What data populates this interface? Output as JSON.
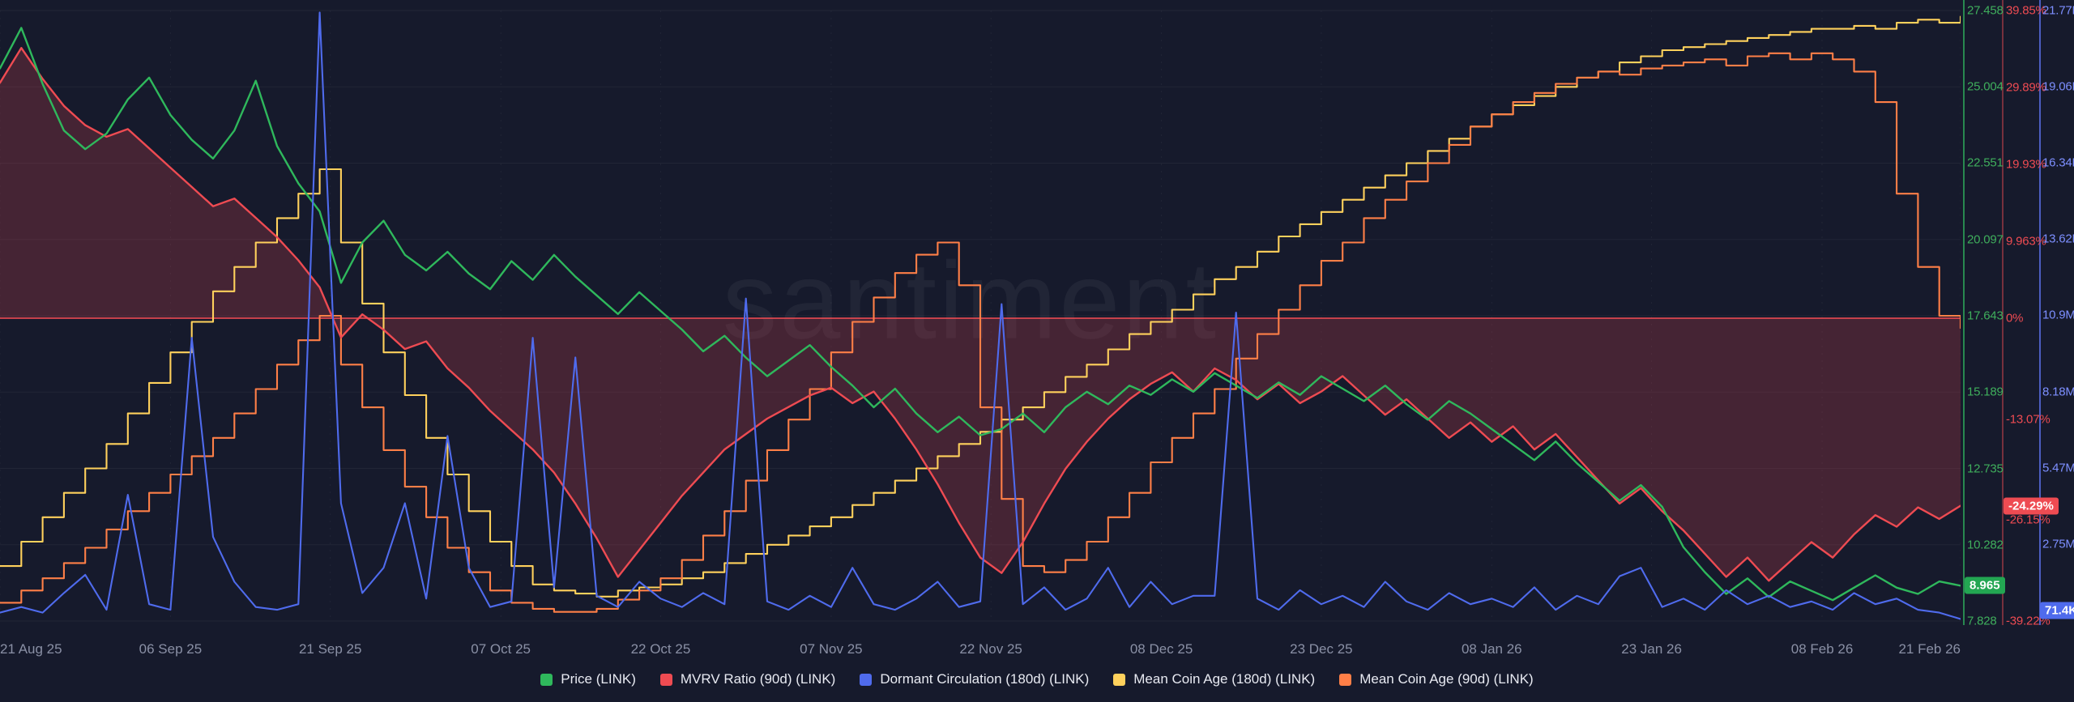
{
  "watermark": "santiment",
  "colors": {
    "background": "#161a2c",
    "grid": "rgba(255,255,255,0.05)",
    "price": "#2fb85c",
    "mvrv": "#ee4b52",
    "dormant": "#4f6bed",
    "coinage180": "#ffd15c",
    "coinage90": "#ff7f47",
    "mvrv_fill": "rgba(238,75,82,0.22)",
    "zero_line": "rgba(238,75,82,0.9)"
  },
  "x_axis": {
    "total_days": 184,
    "labels": [
      {
        "label": "21 Aug 25",
        "day": 0
      },
      {
        "label": "06 Sep 25",
        "day": 16
      },
      {
        "label": "21 Sep 25",
        "day": 31
      },
      {
        "label": "07 Oct 25",
        "day": 47
      },
      {
        "label": "22 Oct 25",
        "day": 62
      },
      {
        "label": "07 Nov 25",
        "day": 78
      },
      {
        "label": "22 Nov 25",
        "day": 93
      },
      {
        "label": "08 Dec 25",
        "day": 109
      },
      {
        "label": "23 Dec 25",
        "day": 124
      },
      {
        "label": "08 Jan 26",
        "day": 140
      },
      {
        "label": "23 Jan 26",
        "day": 155
      },
      {
        "label": "08 Feb 26",
        "day": 171
      },
      {
        "label": "21 Feb 26",
        "day": 184
      }
    ]
  },
  "axes": {
    "price": {
      "ticks": [
        {
          "label": "27.458",
          "value": 27.458
        },
        {
          "label": "25.004",
          "value": 25.004
        },
        {
          "label": "22.551",
          "value": 22.551
        },
        {
          "label": "20.097",
          "value": 20.097
        },
        {
          "label": "17.643",
          "value": 17.643
        },
        {
          "label": "15.189",
          "value": 15.189
        },
        {
          "label": "12.735",
          "value": 12.735
        },
        {
          "label": "10.282",
          "value": 10.282
        },
        {
          "label": "7.828",
          "value": 7.828
        }
      ],
      "current": {
        "label": "8.965",
        "value": 8.965
      }
    },
    "mvrv": {
      "ticks": [
        {
          "label": "39.85%",
          "value": 39.85
        },
        {
          "label": "29.89%",
          "value": 29.89
        },
        {
          "label": "19.93%",
          "value": 19.93
        },
        {
          "label": "9.963%",
          "value": 9.963
        },
        {
          "label": "0%",
          "value": 0
        },
        {
          "label": "-13.07%",
          "value": -13.07
        },
        {
          "label": "-26.15%",
          "value": -26.15
        },
        {
          "label": "-39.22%",
          "value": -39.22
        }
      ],
      "current": {
        "label": "-24.29%",
        "value": -24.29
      }
    },
    "dormant": {
      "ticks": [
        {
          "label": "21.77M",
          "value": 21.77
        },
        {
          "label": "19.06M",
          "value": 19.06
        },
        {
          "label": "16.34M",
          "value": 16.34
        },
        {
          "label": "13.62M",
          "value": 13.62
        },
        {
          "label": "10.9M",
          "value": 10.9
        },
        {
          "label": "8.18M",
          "value": 8.18
        },
        {
          "label": "5.47M",
          "value": 5.47
        },
        {
          "label": "2.75M",
          "value": 2.75
        }
      ],
      "current": {
        "label": "71.4K",
        "value": 0.0714
      }
    }
  },
  "legend": [
    {
      "key": "price",
      "label": "Price (LINK)"
    },
    {
      "key": "mvrv",
      "label": "MVRV Ratio (90d) (LINK)"
    },
    {
      "key": "dormant",
      "label": "Dormant Circulation (180d) (LINK)"
    },
    {
      "key": "coinage180",
      "label": "Mean Coin Age (180d) (LINK)"
    },
    {
      "key": "coinage90",
      "label": "Mean Coin Age (90d) (LINK)"
    }
  ],
  "chart_data": {
    "type": "line",
    "x_start_day": 0,
    "x_end_day": 184,
    "sample_step_days": 2,
    "axis_ranges": {
      "price": {
        "min": 7.828,
        "max": 27.458
      },
      "mvrv": {
        "min": -39.22,
        "max": 39.85
      },
      "dormant": {
        "min": 0,
        "max": 21.77
      },
      "normalized": {
        "min": 0,
        "max": 100,
        "hidden": true
      }
    },
    "series": [
      {
        "key": "price",
        "name": "Price (LINK)",
        "axis": "price",
        "style": "line",
        "values": [
          25.6,
          26.9,
          25.1,
          23.6,
          23.0,
          23.5,
          24.6,
          25.3,
          24.1,
          23.3,
          22.7,
          23.6,
          25.2,
          23.1,
          21.9,
          21.0,
          18.7,
          20.0,
          20.7,
          19.6,
          19.1,
          19.7,
          19.0,
          18.5,
          19.4,
          18.8,
          19.6,
          18.9,
          18.3,
          17.7,
          18.4,
          17.8,
          17.2,
          16.5,
          17.0,
          16.3,
          15.7,
          16.2,
          16.7,
          16.0,
          15.4,
          14.7,
          15.3,
          14.5,
          13.9,
          14.4,
          13.8,
          14.0,
          14.5,
          13.9,
          14.7,
          15.2,
          14.8,
          15.4,
          15.1,
          15.6,
          15.2,
          15.8,
          15.4,
          15.0,
          15.5,
          15.1,
          15.7,
          15.3,
          14.9,
          15.4,
          14.8,
          14.3,
          14.9,
          14.5,
          14.0,
          13.5,
          13.0,
          13.6,
          12.9,
          12.3,
          11.7,
          12.2,
          11.5,
          10.2,
          9.4,
          8.7,
          9.2,
          8.6,
          9.1,
          8.8,
          8.5,
          8.9,
          9.3,
          8.9,
          8.7,
          9.1,
          8.965
        ]
      },
      {
        "key": "mvrv",
        "name": "MVRV Ratio (90d) (LINK)",
        "axis": "mvrv",
        "style": "line",
        "fill_to_zero": true,
        "values": [
          30.5,
          35.0,
          31.0,
          27.5,
          25.0,
          23.5,
          24.5,
          22.0,
          19.5,
          17.0,
          14.5,
          15.5,
          13.0,
          10.5,
          7.5,
          4.0,
          -2.5,
          0.5,
          -1.5,
          -4.0,
          -3.0,
          -6.5,
          -9.0,
          -12.0,
          -14.5,
          -17.0,
          -20.0,
          -24.0,
          -28.5,
          -33.5,
          -30.0,
          -26.5,
          -23.0,
          -20.0,
          -17.0,
          -15.0,
          -13.0,
          -11.5,
          -10.0,
          -9.0,
          -11.0,
          -9.5,
          -13.0,
          -17.0,
          -21.5,
          -26.5,
          -31.0,
          -33.0,
          -29.0,
          -24.0,
          -19.5,
          -16.0,
          -13.0,
          -10.5,
          -8.5,
          -7.0,
          -9.5,
          -6.5,
          -8.0,
          -10.5,
          -8.5,
          -11.0,
          -9.5,
          -7.5,
          -10.0,
          -12.5,
          -10.5,
          -13.0,
          -15.5,
          -13.5,
          -16.0,
          -14.0,
          -17.0,
          -15.0,
          -18.0,
          -21.0,
          -24.0,
          -22.0,
          -25.0,
          -27.5,
          -30.5,
          -33.5,
          -31.0,
          -34.0,
          -31.5,
          -29.0,
          -31.0,
          -28.0,
          -25.5,
          -27.0,
          -24.5,
          -26.0,
          -24.29
        ]
      },
      {
        "key": "dormant",
        "name": "Dormant Circulation (180d) (LINK)",
        "axis": "dormant",
        "style": "line",
        "values": [
          0.3,
          0.5,
          0.3,
          1.0,
          1.65,
          0.4,
          4.5,
          0.6,
          0.4,
          10.1,
          3.0,
          1.4,
          0.5,
          0.4,
          0.6,
          21.7,
          4.2,
          1.0,
          1.9,
          4.2,
          0.8,
          6.6,
          1.9,
          0.5,
          0.7,
          10.1,
          1.2,
          9.4,
          0.9,
          0.5,
          1.4,
          0.8,
          0.5,
          1.0,
          0.6,
          11.5,
          0.7,
          0.4,
          0.9,
          0.5,
          1.9,
          0.6,
          0.4,
          0.8,
          1.4,
          0.5,
          0.7,
          11.3,
          0.6,
          1.2,
          0.4,
          0.8,
          1.9,
          0.5,
          1.4,
          0.6,
          0.9,
          0.9,
          11.0,
          0.8,
          0.4,
          1.1,
          0.6,
          0.9,
          0.5,
          1.4,
          0.7,
          0.4,
          1.0,
          0.6,
          0.8,
          0.5,
          1.2,
          0.4,
          0.9,
          0.6,
          1.6,
          1.9,
          0.5,
          0.8,
          0.4,
          1.1,
          0.6,
          0.9,
          0.5,
          0.7,
          0.4,
          1.0,
          0.6,
          0.8,
          0.4,
          0.3,
          0.0714
        ]
      },
      {
        "key": "coinage180",
        "name": "Mean Coin Age (180d) (LINK)",
        "axis": "normalized",
        "style": "step",
        "values": [
          9,
          13,
          17,
          21,
          25,
          29,
          34,
          39,
          44,
          49,
          54,
          58,
          62,
          66,
          70,
          74,
          62,
          52,
          44,
          37,
          30,
          24,
          18,
          13,
          9,
          6,
          5,
          4.5,
          4,
          5,
          5.5,
          6,
          7,
          8,
          9.5,
          11,
          12.5,
          14,
          15.5,
          17,
          19,
          21,
          23,
          25,
          27,
          29,
          31,
          33,
          35,
          37.5,
          40,
          42,
          44.5,
          47,
          49,
          51,
          53.5,
          56,
          58,
          60.5,
          63,
          65,
          67,
          69,
          71,
          73,
          75,
          77,
          79,
          81,
          83,
          84.5,
          86,
          87.5,
          89,
          90,
          91.5,
          92.5,
          93.5,
          94,
          94.5,
          95,
          95.5,
          96,
          96.5,
          97,
          97,
          97.5,
          97,
          98,
          98.5,
          98,
          99
        ]
      },
      {
        "key": "coinage90",
        "name": "Mean Coin Age (90d) (LINK)",
        "axis": "normalized",
        "style": "step",
        "values": [
          3,
          5,
          7,
          9.5,
          12,
          15,
          18,
          21,
          24,
          27,
          30,
          34,
          38,
          42,
          46,
          50,
          42,
          35,
          28,
          22,
          17,
          12,
          8,
          5,
          3,
          2,
          1.5,
          1.5,
          2,
          3.5,
          5,
          7,
          10,
          14,
          18,
          23,
          28,
          33,
          38,
          44,
          49,
          53,
          57,
          60,
          62,
          55,
          35,
          20,
          9,
          8,
          10,
          13,
          17,
          21,
          26,
          30,
          34,
          38,
          43,
          47,
          51,
          55,
          59,
          62,
          66,
          69,
          72,
          75,
          78,
          81,
          83,
          85,
          86.5,
          88,
          89,
          90,
          89.5,
          90.5,
          91,
          91.5,
          92,
          91,
          92.5,
          93,
          92,
          93,
          92,
          90,
          85,
          70,
          58,
          50,
          48
        ]
      }
    ]
  }
}
